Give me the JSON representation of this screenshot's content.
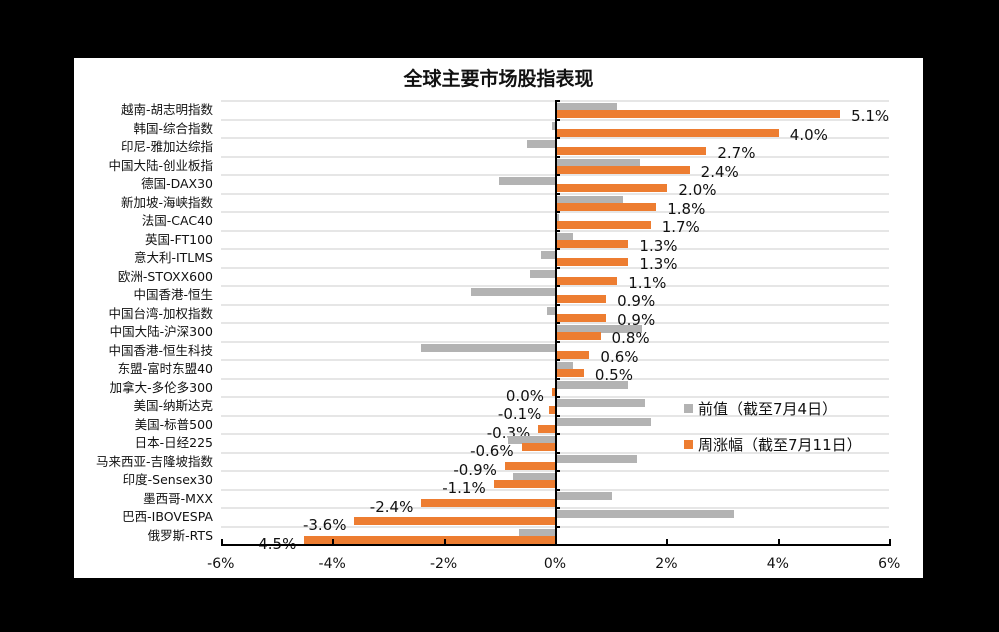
{
  "chart_data": {
    "type": "bar",
    "orientation": "horizontal",
    "title": "全球主要市场股指表现",
    "xlabel": "",
    "ylabel": "",
    "xlim": [
      -6,
      6
    ],
    "x_ticks": [
      "-6%",
      "-4%",
      "-2%",
      "0%",
      "2%",
      "4%",
      "6%"
    ],
    "x_tick_values": [
      -6,
      -4,
      -2,
      0,
      2,
      4,
      6
    ],
    "grid": true,
    "legend_position": "inside-right",
    "categories": [
      "越南-胡志明指数",
      "韩国-综合指数",
      "印尼-雅加达综指",
      "中国大陆-创业板指",
      "德国-DAX30",
      "新加坡-海峡指数",
      "法国-CAC40",
      "英国-FT100",
      "意大利-ITLMS",
      "欧洲-STOXX600",
      "中国香港-恒生",
      "中国台湾-加权指数",
      "中国大陆-沪深300",
      "中国香港-恒生科技",
      "东盟-富时东盟40",
      "加拿大-多伦多300",
      "美国-纳斯达克",
      "美国-标普500",
      "日本-日经225",
      "马来西亚-吉隆坡指数",
      "印度-Sensex30",
      "墨西哥-MXX",
      "巴西-IBOVESPA",
      "俄罗斯-RTS"
    ],
    "series": [
      {
        "name": "前值（截至7月4日）",
        "color": "#b3b3b3",
        "values": [
          1.1,
          -0.05,
          -0.5,
          1.5,
          -1.0,
          1.2,
          0.05,
          0.3,
          -0.25,
          -0.45,
          -1.5,
          -0.15,
          1.55,
          -2.4,
          0.3,
          1.3,
          1.6,
          1.7,
          -0.85,
          1.45,
          -0.75,
          1.0,
          3.2,
          -0.65
        ]
      },
      {
        "name": "周涨幅（截至7月11日）",
        "color": "#ed7d31",
        "values": [
          5.1,
          4.0,
          2.7,
          2.4,
          2.0,
          1.8,
          1.7,
          1.3,
          1.3,
          1.1,
          0.9,
          0.9,
          0.8,
          0.6,
          0.5,
          0.0,
          -0.1,
          -0.3,
          -0.6,
          -0.9,
          -1.1,
          -2.4,
          -3.6,
          -4.5
        ],
        "data_labels": [
          "5.1%",
          "4.0%",
          "2.7%",
          "2.4%",
          "2.0%",
          "1.8%",
          "1.7%",
          "1.3%",
          "1.3%",
          "1.1%",
          "0.9%",
          "0.9%",
          "0.8%",
          "0.6%",
          "0.5%",
          "0.0%",
          "-0.1%",
          "-0.3%",
          "-0.6%",
          "-0.9%",
          "-1.1%",
          "-2.4%",
          "-3.6%",
          "-4.5%"
        ]
      }
    ]
  },
  "legend": {
    "prev_label": "前值（截至7月4日）",
    "cur_label": "周涨幅（截至7月11日）"
  }
}
